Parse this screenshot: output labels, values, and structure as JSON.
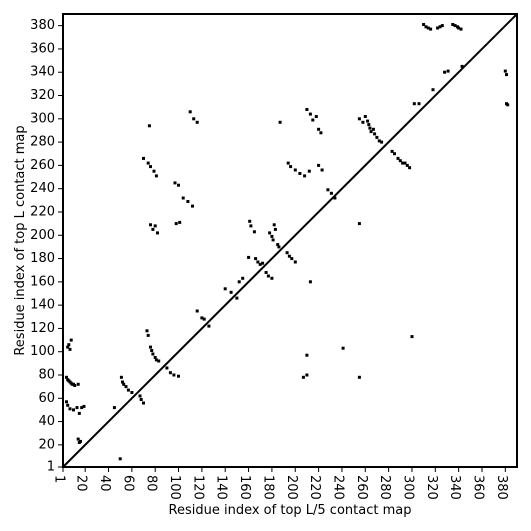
{
  "chart_data": {
    "type": "scatter",
    "title": "",
    "xlabel": "Residue index of top L/5 contact map",
    "ylabel": "Residue index of top L contact map",
    "xlim": [
      1,
      390
    ],
    "ylim": [
      1,
      390
    ],
    "x_ticks": [
      "1",
      "20",
      "40",
      "60",
      "80",
      "100",
      "120",
      "140",
      "160",
      "180",
      "200",
      "220",
      "240",
      "260",
      "280",
      "300",
      "320",
      "340",
      "360",
      "380"
    ],
    "y_ticks": [
      "1",
      "20",
      "40",
      "60",
      "80",
      "100",
      "120",
      "140",
      "160",
      "180",
      "200",
      "220",
      "240",
      "260",
      "280",
      "300",
      "320",
      "340",
      "360",
      "380"
    ],
    "grid": false,
    "diagonal_line": true,
    "series": [
      {
        "color": "#000000",
        "points": [
          [
            5,
            104
          ],
          [
            6,
            106
          ],
          [
            8,
            110
          ],
          [
            7,
            102
          ],
          [
            4,
            78
          ],
          [
            5,
            76
          ],
          [
            6,
            75
          ],
          [
            7,
            74
          ],
          [
            8,
            73
          ],
          [
            9,
            72
          ],
          [
            10,
            72
          ],
          [
            11,
            71
          ],
          [
            14,
            72
          ],
          [
            4,
            57
          ],
          [
            5,
            54
          ],
          [
            7,
            51
          ],
          [
            10,
            50
          ],
          [
            13,
            52
          ],
          [
            15,
            47
          ],
          [
            17,
            52
          ],
          [
            19,
            53
          ],
          [
            14,
            25
          ],
          [
            15,
            22
          ],
          [
            16,
            23
          ],
          [
            45,
            52
          ],
          [
            51,
            78
          ],
          [
            52,
            74
          ],
          [
            53,
            72
          ],
          [
            55,
            70
          ],
          [
            57,
            67
          ],
          [
            60,
            65
          ],
          [
            50,
            8
          ],
          [
            67,
            62
          ],
          [
            68,
            59
          ],
          [
            70,
            56
          ],
          [
            73,
            118
          ],
          [
            74,
            114
          ],
          [
            76,
            104
          ],
          [
            77,
            101
          ],
          [
            78,
            98
          ],
          [
            80,
            95
          ],
          [
            81,
            93
          ],
          [
            83,
            92
          ],
          [
            90,
            86
          ],
          [
            93,
            82
          ],
          [
            96,
            80
          ],
          [
            100,
            79
          ],
          [
            76,
            209
          ],
          [
            78,
            205
          ],
          [
            80,
            208
          ],
          [
            82,
            202
          ],
          [
            98,
            210
          ],
          [
            101,
            211
          ],
          [
            70,
            266
          ],
          [
            74,
            262
          ],
          [
            76,
            259
          ],
          [
            79,
            255
          ],
          [
            81,
            251
          ],
          [
            97,
            245
          ],
          [
            100,
            243
          ],
          [
            104,
            232
          ],
          [
            108,
            229
          ],
          [
            112,
            225
          ],
          [
            110,
            306
          ],
          [
            113,
            300
          ],
          [
            116,
            297
          ],
          [
            75,
            294
          ],
          [
            116,
            135
          ],
          [
            120,
            129
          ],
          [
            122,
            128
          ],
          [
            126,
            122
          ],
          [
            140,
            154
          ],
          [
            145,
            151
          ],
          [
            150,
            146
          ],
          [
            152,
            160
          ],
          [
            155,
            163
          ],
          [
            160,
            181
          ],
          [
            161,
            212
          ],
          [
            162,
            208
          ],
          [
            165,
            203
          ],
          [
            166,
            180
          ],
          [
            168,
            177
          ],
          [
            170,
            175
          ],
          [
            172,
            176
          ],
          [
            175,
            168
          ],
          [
            177,
            165
          ],
          [
            180,
            163
          ],
          [
            178,
            202
          ],
          [
            180,
            199
          ],
          [
            181,
            196
          ],
          [
            182,
            209
          ],
          [
            183,
            205
          ],
          [
            185,
            192
          ],
          [
            186,
            190
          ],
          [
            187,
            297
          ],
          [
            193,
            185
          ],
          [
            195,
            182
          ],
          [
            197,
            180
          ],
          [
            200,
            177
          ],
          [
            194,
            262
          ],
          [
            196,
            259
          ],
          [
            200,
            256
          ],
          [
            204,
            253
          ],
          [
            208,
            251
          ],
          [
            212,
            255
          ],
          [
            210,
            308
          ],
          [
            213,
            304
          ],
          [
            215,
            299
          ],
          [
            218,
            302
          ],
          [
            220,
            291
          ],
          [
            222,
            288
          ],
          [
            220,
            260
          ],
          [
            223,
            256
          ],
          [
            207,
            78
          ],
          [
            210,
            80
          ],
          [
            213,
            160
          ],
          [
            210,
            97
          ],
          [
            228,
            239
          ],
          [
            231,
            236
          ],
          [
            234,
            232
          ],
          [
            241,
            103
          ],
          [
            255,
            78
          ],
          [
            255,
            210
          ],
          [
            255,
            300
          ],
          [
            258,
            297
          ],
          [
            260,
            302
          ],
          [
            262,
            298
          ],
          [
            263,
            295
          ],
          [
            264,
            292
          ],
          [
            265,
            289
          ],
          [
            267,
            291
          ],
          [
            268,
            287
          ],
          [
            270,
            284
          ],
          [
            272,
            281
          ],
          [
            274,
            280
          ],
          [
            283,
            272
          ],
          [
            285,
            270
          ],
          [
            288,
            266
          ],
          [
            290,
            264
          ],
          [
            292,
            262
          ],
          [
            294,
            262
          ],
          [
            296,
            260
          ],
          [
            298,
            258
          ],
          [
            300,
            113
          ],
          [
            302,
            313
          ],
          [
            306,
            313
          ],
          [
            310,
            381
          ],
          [
            312,
            379
          ],
          [
            314,
            378
          ],
          [
            316,
            377
          ],
          [
            318,
            325
          ],
          [
            322,
            378
          ],
          [
            324,
            379
          ],
          [
            326,
            380
          ],
          [
            328,
            340
          ],
          [
            331,
            341
          ],
          [
            335,
            381
          ],
          [
            337,
            380
          ],
          [
            339,
            379
          ],
          [
            340,
            378
          ],
          [
            342,
            377
          ],
          [
            343,
            345
          ],
          [
            380,
            341
          ],
          [
            381,
            338
          ],
          [
            382,
            312
          ],
          [
            381,
            313
          ]
        ]
      }
    ]
  }
}
